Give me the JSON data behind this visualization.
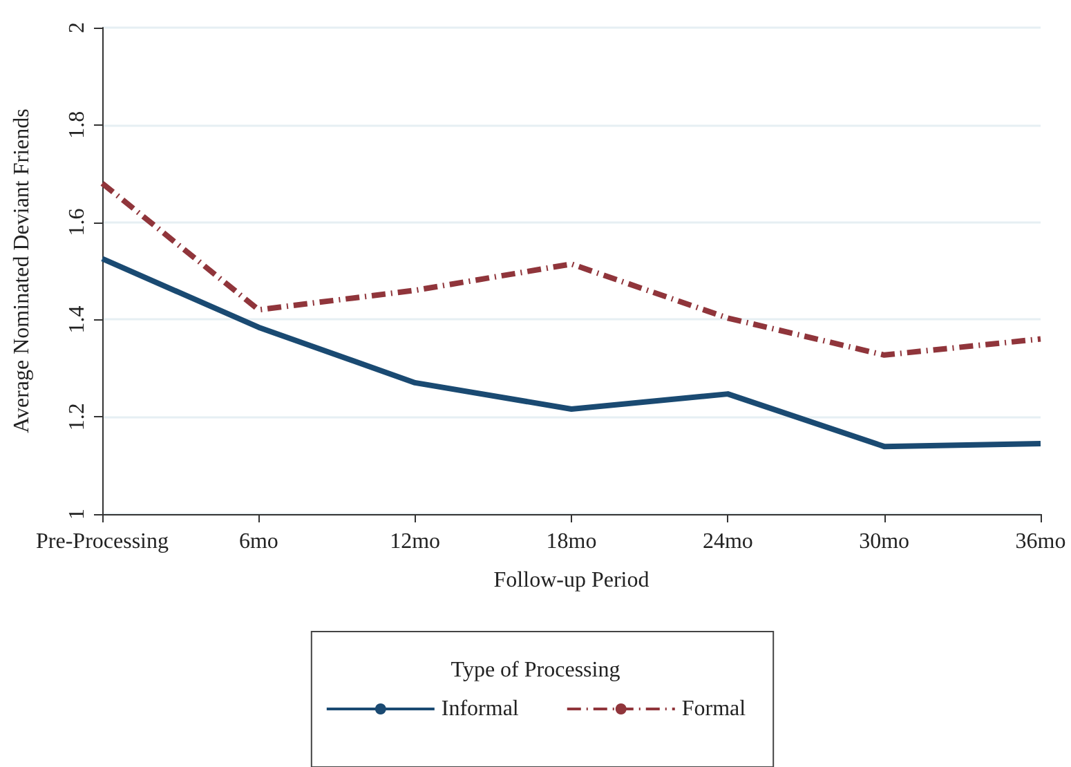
{
  "chart_data": {
    "type": "line",
    "xlabel": "Follow-up Period",
    "ylabel": "Average Nominated Deviant Friends",
    "categories": [
      "Pre-Processing",
      "6mo",
      "12mo",
      "18mo",
      "24mo",
      "30mo",
      "36mo"
    ],
    "series": [
      {
        "name": "Informal",
        "color": "#1a4a72",
        "line_style": "solid",
        "values": [
          1.525,
          1.384,
          1.27,
          1.216,
          1.247,
          1.139,
          1.145
        ]
      },
      {
        "name": "Formal",
        "color": "#90353b",
        "line_style": "dashed",
        "values": [
          1.68,
          1.42,
          1.46,
          1.514,
          1.403,
          1.327,
          1.36
        ]
      }
    ],
    "ylim": [
      1,
      2
    ],
    "yticks": [
      1,
      1.2,
      1.4,
      1.6,
      1.8,
      2
    ],
    "grid": "y",
    "legend": "bottom",
    "legend_title": "Type of Processing",
    "marker": "none"
  }
}
